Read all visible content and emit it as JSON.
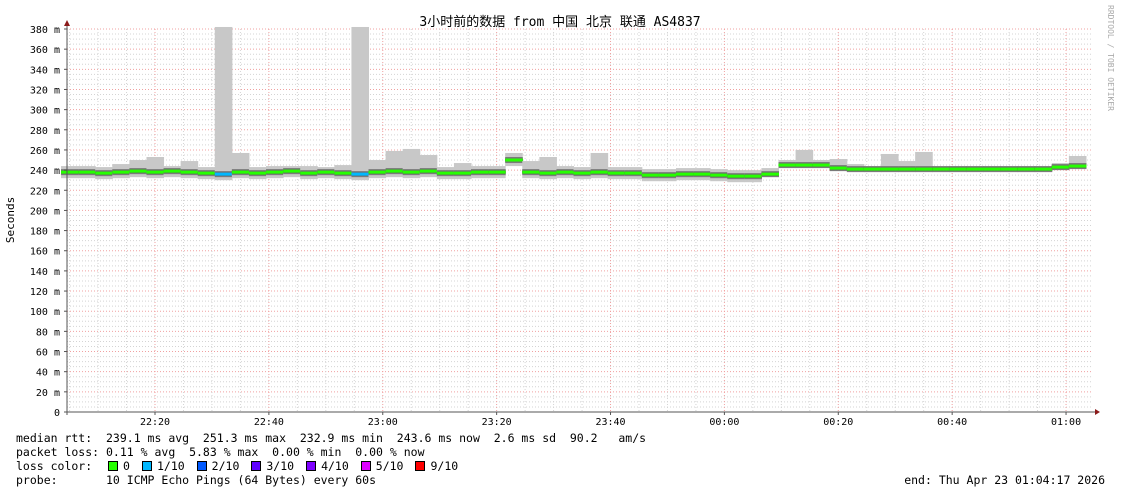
{
  "chart_data": {
    "type": "area",
    "title": "3小时前的数据 from 中国 北京 联通 AS4837",
    "ylabel": "Seconds",
    "ylim": [
      0,
      380
    ],
    "y_ticks": [
      "0",
      "20 m",
      "40 m",
      "60 m",
      "80 m",
      "100 m",
      "120 m",
      "140 m",
      "160 m",
      "180 m",
      "200 m",
      "220 m",
      "240 m",
      "260 m",
      "280 m",
      "300 m",
      "320 m",
      "340 m",
      "360 m",
      "380 m"
    ],
    "x_ticks": [
      "22:20",
      "22:40",
      "23:00",
      "23:20",
      "23:40",
      "00:00",
      "00:20",
      "00:40",
      "01:00"
    ],
    "grid": true,
    "watermark": "RRDTOOL / TOBI OETIKER",
    "series": {
      "time": [
        "22:05",
        "22:08",
        "22:11",
        "22:14",
        "22:17",
        "22:20",
        "22:23",
        "22:26",
        "22:29",
        "22:32",
        "22:35",
        "22:38",
        "22:41",
        "22:44",
        "22:47",
        "22:50",
        "22:53",
        "22:56",
        "22:59",
        "23:02",
        "23:05",
        "23:08",
        "23:11",
        "23:14",
        "23:17",
        "23:20",
        "23:23",
        "23:26",
        "23:29",
        "23:32",
        "23:35",
        "23:38",
        "23:41",
        "23:44",
        "23:47",
        "23:50",
        "23:53",
        "23:56",
        "23:59",
        "00:02",
        "00:05",
        "00:08",
        "00:11",
        "00:14",
        "00:17",
        "00:20",
        "00:23",
        "00:26",
        "00:29",
        "00:32",
        "00:35",
        "00:38",
        "00:41",
        "00:44",
        "00:47",
        "00:50",
        "00:53",
        "00:56",
        "00:59",
        "01:02"
      ],
      "median_ms": [
        238,
        238,
        237,
        238,
        239,
        238,
        239,
        238,
        237,
        236,
        238,
        237,
        238,
        239,
        237,
        238,
        237,
        236,
        238,
        239,
        238,
        239,
        237,
        237,
        238,
        238,
        250,
        238,
        237,
        238,
        237,
        238,
        237,
        237,
        235,
        235,
        236,
        236,
        235,
        234,
        234,
        236,
        245,
        245,
        245,
        242,
        241,
        241,
        241,
        241,
        241,
        241,
        241,
        241,
        241,
        241,
        241,
        241,
        243,
        244
      ],
      "max_ms": [
        244,
        244,
        243,
        246,
        250,
        253,
        244,
        249,
        243,
        400,
        257,
        243,
        244,
        244,
        244,
        243,
        245,
        400,
        250,
        259,
        261,
        255,
        243,
        247,
        244,
        244,
        257,
        249,
        253,
        244,
        243,
        257,
        243,
        243,
        241,
        241,
        242,
        242,
        241,
        240,
        240,
        242,
        250,
        260,
        250,
        251,
        246,
        241,
        256,
        249,
        258,
        241,
        242,
        241,
        243,
        241,
        241,
        241,
        247,
        254
      ],
      "min_ms": [
        232,
        232,
        231,
        232,
        233,
        232,
        233,
        232,
        231,
        230,
        232,
        231,
        232,
        233,
        231,
        232,
        231,
        230,
        232,
        233,
        232,
        233,
        231,
        231,
        232,
        232,
        244,
        232,
        231,
        232,
        231,
        232,
        231,
        231,
        229,
        229,
        230,
        230,
        229,
        228,
        228,
        235,
        244,
        244,
        244,
        241,
        240,
        240,
        240,
        240,
        240,
        240,
        240,
        240,
        240,
        240,
        240,
        240,
        242,
        243
      ],
      "loss": [
        0,
        0,
        0,
        0,
        0,
        0,
        0,
        0,
        0,
        1,
        0,
        0,
        0,
        0,
        0,
        0,
        0,
        1,
        0,
        0,
        0,
        0,
        0,
        0,
        0,
        0,
        0,
        0,
        0,
        0,
        0,
        0,
        0,
        0,
        0,
        0,
        0,
        0,
        0,
        0,
        0,
        0,
        0,
        0,
        0,
        0,
        0,
        0,
        0,
        0,
        0,
        0,
        0,
        0,
        0,
        0,
        0,
        0,
        0,
        0
      ]
    }
  },
  "legend": {
    "median_rtt": "median rtt:  239.1 ms avg  251.3 ms max  232.9 ms min  243.6 ms now  2.6 ms sd  90.2   am/s",
    "packet_loss": "packet loss: 0.11 % avg  5.83 % max  0.00 % min  0.00 % now",
    "loss_color_label": "loss color:",
    "loss_colors": [
      {
        "label": "0",
        "color": "#26ff00"
      },
      {
        "label": "1/10",
        "color": "#00b8ff"
      },
      {
        "label": "2/10",
        "color": "#0059ff"
      },
      {
        "label": "3/10",
        "color": "#5e00ff"
      },
      {
        "label": "4/10",
        "color": "#7e00ff"
      },
      {
        "label": "5/10",
        "color": "#dd00ff"
      },
      {
        "label": "9/10",
        "color": "#ff0000"
      }
    ],
    "probe": "probe:       10 ICMP Echo Pings (64 Bytes) every 60s",
    "end": "end: Thu Apr 23 01:04:17 2026"
  }
}
